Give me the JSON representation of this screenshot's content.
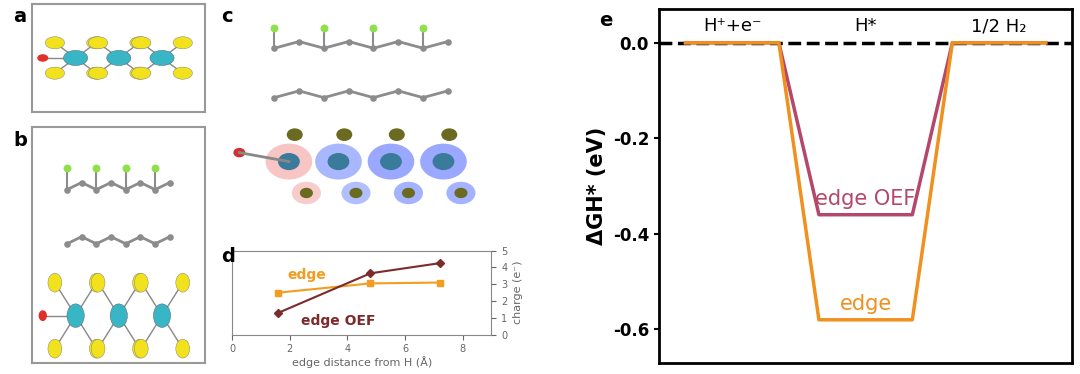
{
  "panel_labels": [
    "a",
    "b",
    "c"
  ],
  "chart_data": [
    {
      "type": "line",
      "panel_label": "d",
      "xlabel": "edge distance from H (Å)",
      "ylabel": "charge (e⁻)",
      "xlim": [
        0,
        9
      ],
      "xticks": [
        0,
        2,
        4,
        6,
        8
      ],
      "ylim": [
        0,
        5
      ],
      "yticks": [
        0,
        1,
        2,
        3,
        4,
        5
      ],
      "series": [
        {
          "name": "edge",
          "color": "#f39c1f",
          "marker": "square",
          "x": [
            1.6,
            4.8,
            7.2
          ],
          "values": [
            2.5,
            3.05,
            3.1
          ]
        },
        {
          "name": "edge OEF",
          "color": "#7b2b2b",
          "marker": "diamond",
          "x": [
            1.6,
            4.8,
            7.2
          ],
          "values": [
            1.3,
            3.65,
            4.25
          ]
        }
      ]
    },
    {
      "type": "step",
      "panel_label": "e",
      "ylabel": "ΔGH* (eV)",
      "categories": [
        "H⁺+e⁻",
        "H*",
        "1/2 H₂"
      ],
      "ylim": [
        -0.67,
        0.07
      ],
      "yticks": [
        {
          "value": 0,
          "label": "0.0"
        },
        -0.2,
        -0.4,
        -0.6
      ],
      "tick_labels": "y",
      "series": [
        {
          "color": "#000000",
          "line_style": "dashed",
          "values": [
            0,
            0,
            0
          ]
        },
        {
          "name": "edge OEF",
          "color": "#b5476a",
          "line_style": "solid",
          "values": [
            0,
            -0.36,
            0
          ]
        },
        {
          "name": "edge",
          "color": "#f0901e",
          "line_style": "solid",
          "values": [
            0,
            -0.58,
            0
          ]
        }
      ]
    }
  ]
}
